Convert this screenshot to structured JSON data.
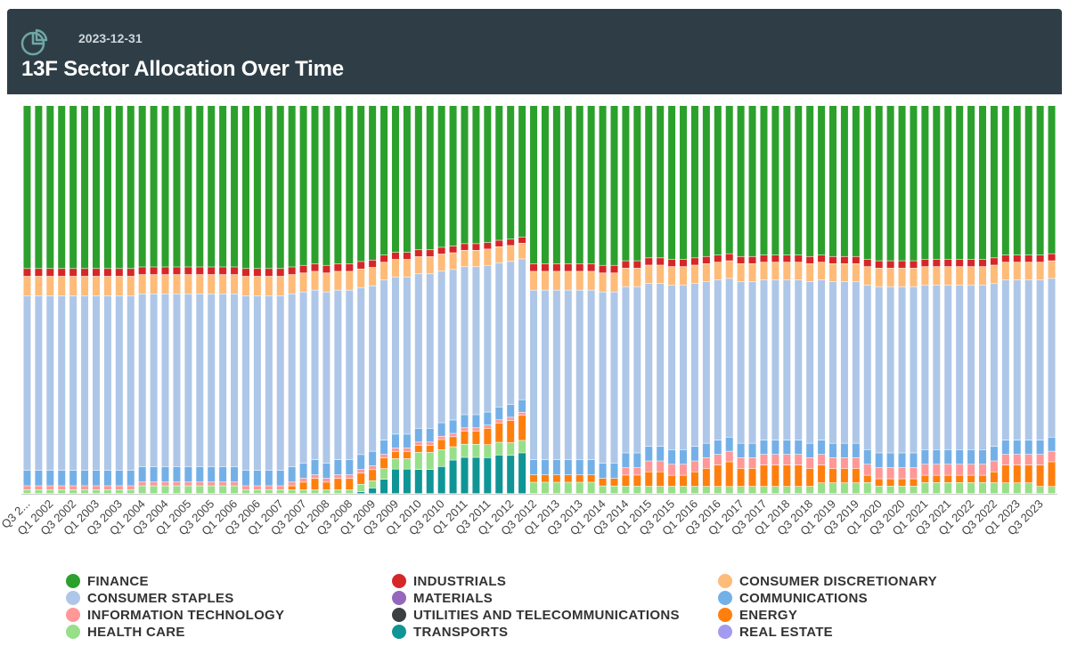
{
  "header": {
    "date": "2023-12-31",
    "title": "13F Sector Allocation Over Time",
    "icon": "pie-chart-icon"
  },
  "chart_data": {
    "type": "bar",
    "stacked": true,
    "normalized": true,
    "title": "13F Sector Allocation Over Time",
    "xlabel": "",
    "ylabel": "",
    "ylim": [
      0,
      100
    ],
    "grid": false,
    "legend_position": "bottom",
    "tick_labels": [
      "Q3 2...",
      "Q1 2002",
      "Q3 2002",
      "Q1 2003",
      "Q3 2003",
      "Q1 2004",
      "Q3 2004",
      "Q1 2005",
      "Q3 2005",
      "Q1 2006",
      "Q3 2006",
      "Q1 2007",
      "Q3 2007",
      "Q1 2008",
      "Q3 2008",
      "Q1 2009",
      "Q3 2009",
      "Q1 2010",
      "Q3 2010",
      "Q1 2011",
      "Q3 2011",
      "Q1 2012",
      "Q3 2012",
      "Q1 2013",
      "Q3 2013",
      "Q1 2014",
      "Q3 2014",
      "Q1 2015",
      "Q3 2015",
      "Q1 2016",
      "Q3 2016",
      "Q1 2017",
      "Q3 2017",
      "Q1 2018",
      "Q3 2018",
      "Q1 2019",
      "Q3 2019",
      "Q1 2020",
      "Q3 2020",
      "Q1 2021",
      "Q3 2021",
      "Q1 2022",
      "Q3 2022",
      "Q1 2023",
      "Q3 2023"
    ],
    "categories": [
      "Q3 2001",
      "Q4 2001",
      "Q1 2002",
      "Q2 2002",
      "Q3 2002",
      "Q4 2002",
      "Q1 2003",
      "Q2 2003",
      "Q3 2003",
      "Q4 2003",
      "Q1 2004",
      "Q2 2004",
      "Q3 2004",
      "Q4 2004",
      "Q1 2005",
      "Q2 2005",
      "Q3 2005",
      "Q4 2005",
      "Q1 2006",
      "Q2 2006",
      "Q3 2006",
      "Q4 2006",
      "Q1 2007",
      "Q2 2007",
      "Q3 2007",
      "Q4 2007",
      "Q1 2008",
      "Q2 2008",
      "Q3 2008",
      "Q4 2008",
      "Q1 2009",
      "Q2 2009",
      "Q3 2009",
      "Q4 2009",
      "Q1 2010",
      "Q2 2010",
      "Q3 2010",
      "Q4 2010",
      "Q1 2011",
      "Q2 2011",
      "Q3 2011",
      "Q4 2011",
      "Q1 2012",
      "Q2 2012",
      "Q3 2012",
      "Q4 2012",
      "Q1 2013",
      "Q2 2013",
      "Q3 2013",
      "Q4 2013",
      "Q1 2014",
      "Q2 2014",
      "Q3 2014",
      "Q4 2014",
      "Q1 2015",
      "Q2 2015",
      "Q3 2015",
      "Q4 2015",
      "Q1 2016",
      "Q2 2016",
      "Q3 2016",
      "Q4 2016",
      "Q1 2017",
      "Q2 2017",
      "Q3 2017",
      "Q4 2017",
      "Q1 2018",
      "Q2 2018",
      "Q3 2018",
      "Q4 2018",
      "Q1 2019",
      "Q2 2019",
      "Q3 2019",
      "Q4 2019",
      "Q1 2020",
      "Q2 2020",
      "Q3 2020",
      "Q4 2020",
      "Q1 2021",
      "Q2 2021",
      "Q3 2021",
      "Q4 2021",
      "Q1 2022",
      "Q2 2022",
      "Q3 2022",
      "Q4 2022",
      "Q1 2023",
      "Q2 2023",
      "Q3 2023",
      "Q4 2023"
    ],
    "series": [
      {
        "name": "TRANSPORTS",
        "color": "#0f9595",
        "values": [
          0,
          0,
          0,
          0,
          0,
          0,
          0,
          0,
          0,
          0,
          0,
          0,
          0,
          0,
          0,
          0,
          0,
          0,
          0,
          0,
          0,
          0,
          0,
          0,
          0,
          0,
          0,
          0,
          0,
          0.5,
          1.5,
          4,
          7,
          7,
          7,
          7,
          8,
          10,
          11,
          11,
          11,
          12,
          12,
          13,
          0,
          0,
          0,
          0,
          0,
          0,
          0,
          0,
          0,
          0,
          0,
          0,
          0,
          0,
          0,
          0,
          0,
          0,
          0,
          0,
          0,
          0,
          0,
          0,
          0,
          0,
          0,
          0,
          0,
          0,
          0,
          0,
          0,
          0,
          0,
          0,
          0,
          0,
          0,
          0,
          0,
          0,
          0,
          0,
          0,
          0
        ]
      },
      {
        "name": "HEALTH CARE",
        "color": "#98df8a",
        "values": [
          1,
          1,
          1,
          1,
          1,
          1,
          1,
          1,
          1,
          1,
          2,
          2,
          2,
          2,
          2,
          2,
          2,
          2,
          2,
          1,
          1,
          1,
          1,
          1,
          1,
          1,
          1,
          1,
          1,
          2,
          2,
          3,
          3,
          3,
          5,
          5,
          5,
          4,
          4,
          4,
          4,
          4,
          4,
          4,
          3,
          3,
          3,
          3,
          3,
          3,
          2,
          2,
          2,
          2,
          2,
          2,
          2,
          2,
          2,
          2,
          2,
          2,
          2,
          2,
          2,
          2,
          2,
          2,
          2,
          3,
          3,
          3,
          3,
          3,
          2,
          2,
          2,
          2,
          3,
          3,
          3,
          3,
          3,
          3,
          3,
          3,
          3,
          3,
          2,
          2
        ]
      },
      {
        "name": "ENERGY",
        "color": "#ff7f0e",
        "values": [
          0,
          0,
          0,
          0,
          0,
          0,
          0,
          0,
          0,
          0,
          0,
          0,
          0,
          0,
          0,
          0,
          0,
          0,
          0,
          0,
          0,
          0,
          0,
          1,
          2,
          3,
          2,
          3,
          3,
          3,
          3,
          3,
          2,
          2,
          2,
          2,
          3,
          3,
          4,
          4,
          5,
          6,
          7,
          8,
          2,
          2,
          2,
          2,
          2,
          2,
          2,
          2,
          3,
          3,
          4,
          4,
          3,
          3,
          4,
          5,
          6,
          7,
          5,
          5,
          6,
          6,
          6,
          6,
          5,
          5,
          4,
          4,
          4,
          2,
          2,
          2,
          2,
          2,
          2,
          2,
          2,
          2,
          2,
          2,
          3,
          5,
          5,
          5,
          6,
          7
        ]
      },
      {
        "name": "INFORMATION TECHNOLOGY",
        "color": "#ff9896",
        "values": [
          1,
          1,
          1,
          1,
          1,
          1,
          1,
          1,
          1,
          1,
          1,
          1,
          1,
          1,
          1,
          1,
          1,
          1,
          1,
          1,
          1,
          1,
          1,
          1,
          1,
          1,
          1,
          1,
          1,
          1,
          1,
          1,
          1,
          1,
          1,
          1,
          1,
          1,
          1,
          1,
          1,
          1,
          1,
          1,
          0,
          0,
          0,
          0,
          0,
          0,
          0,
          0,
          2,
          2,
          3,
          3,
          3,
          3,
          3,
          3,
          3,
          3,
          3,
          3,
          3,
          3,
          3,
          3,
          3,
          3,
          3,
          3,
          3,
          3,
          3,
          3,
          3,
          3,
          3,
          3,
          3,
          3,
          3,
          3,
          3,
          3,
          3,
          3,
          3,
          3
        ]
      },
      {
        "name": "COMMUNICATIONS",
        "color": "#74b0e8",
        "values": [
          4,
          4,
          4,
          4,
          4,
          4,
          4,
          4,
          4,
          4,
          4,
          4,
          4,
          4,
          4,
          4,
          4,
          4,
          4,
          4,
          4,
          4,
          4,
          4,
          4,
          4,
          4,
          4,
          4,
          4,
          4,
          4,
          4,
          4,
          4,
          4,
          4,
          4,
          4,
          4,
          4,
          4,
          4,
          4,
          4,
          4,
          4,
          4,
          4,
          4,
          4,
          4,
          4,
          4,
          4,
          4,
          4,
          4,
          4,
          4,
          4,
          4,
          4,
          4,
          4,
          4,
          4,
          4,
          4,
          4,
          4,
          4,
          4,
          4,
          4,
          4,
          4,
          4,
          4,
          4,
          4,
          4,
          4,
          4,
          4,
          4,
          4,
          4,
          4,
          4
        ]
      },
      {
        "name": "CONSUMER STAPLES",
        "color": "#aec7e8",
        "values": [
          45,
          45,
          45,
          45,
          45,
          45,
          45,
          45,
          45,
          45,
          45,
          45,
          45,
          45,
          45,
          45,
          45,
          45,
          45,
          45,
          45,
          45,
          45,
          45,
          45,
          45,
          45,
          45,
          45,
          45,
          45,
          45,
          45,
          45,
          45,
          45,
          45,
          45,
          45,
          45,
          45,
          45,
          45,
          45,
          45,
          45,
          45,
          45,
          45,
          45,
          45,
          45,
          45,
          45,
          45,
          45,
          45,
          45,
          45,
          45,
          45,
          45,
          45,
          45,
          45,
          45,
          45,
          45,
          45,
          45,
          45,
          45,
          45,
          45,
          45,
          45,
          45,
          45,
          45,
          45,
          45,
          45,
          45,
          45,
          45,
          45,
          45,
          45,
          45,
          45
        ]
      },
      {
        "name": "CONSUMER DISCRETIONARY",
        "color": "#ffbb78",
        "values": [
          5,
          5,
          5,
          5,
          5,
          5,
          5,
          5,
          5,
          5,
          5,
          5,
          5,
          5,
          5,
          5,
          5,
          5,
          5,
          5,
          5,
          5,
          5,
          5,
          5,
          5,
          5,
          5,
          5,
          5,
          5,
          5,
          5,
          5,
          5,
          5,
          5,
          5,
          5,
          5,
          5,
          5,
          5,
          5,
          5,
          5,
          5,
          5,
          5,
          5,
          5,
          5,
          5,
          5,
          5,
          5,
          5,
          5,
          5,
          5,
          5,
          5,
          5,
          5,
          5,
          5,
          5,
          5,
          5,
          5,
          5,
          5,
          5,
          5,
          5,
          5,
          5,
          5,
          5,
          5,
          5,
          5,
          5,
          5,
          5,
          5,
          5,
          5,
          5,
          5
        ]
      },
      {
        "name": "INDUSTRIALS",
        "color": "#d62728",
        "values": [
          2,
          2,
          2,
          2,
          2,
          2,
          2,
          2,
          2,
          2,
          2,
          2,
          2,
          2,
          2,
          2,
          2,
          2,
          2,
          2,
          2,
          2,
          2,
          2,
          2,
          2,
          2,
          2,
          2,
          2,
          2,
          2,
          2,
          2,
          2,
          2,
          2,
          2,
          2,
          2,
          2,
          2,
          2,
          2,
          2,
          2,
          2,
          2,
          2,
          2,
          2,
          2,
          2,
          2,
          2,
          2,
          2,
          2,
          2,
          2,
          2,
          2,
          2,
          2,
          2,
          2,
          2,
          2,
          2,
          2,
          2,
          2,
          2,
          2,
          2,
          2,
          2,
          2,
          2,
          2,
          2,
          2,
          2,
          2,
          2,
          2,
          2,
          2,
          2,
          2
        ]
      },
      {
        "name": "FINANCE",
        "color": "#2ca02c",
        "values": [
          42,
          42,
          42,
          42,
          42,
          42,
          42,
          42,
          42,
          42,
          42,
          42,
          42,
          42,
          42,
          42,
          42,
          42,
          42,
          42,
          42,
          42,
          42,
          42,
          42,
          42,
          42,
          42,
          42,
          42,
          42,
          42,
          42,
          42,
          42,
          42,
          42,
          42,
          42,
          42,
          42,
          42,
          42,
          42,
          42,
          42,
          42,
          42,
          42,
          42,
          42,
          42,
          42,
          42,
          42,
          42,
          42,
          42,
          42,
          42,
          42,
          42,
          42,
          42,
          42,
          42,
          42,
          42,
          42,
          42,
          42,
          42,
          42,
          42,
          42,
          42,
          42,
          42,
          42,
          42,
          42,
          42,
          42,
          42,
          42,
          42,
          42,
          42,
          42,
          42
        ]
      }
    ],
    "legend": [
      {
        "name": "FINANCE",
        "color": "#2ca02c"
      },
      {
        "name": "INDUSTRIALS",
        "color": "#d62728"
      },
      {
        "name": "CONSUMER DISCRETIONARY",
        "color": "#ffbb78"
      },
      {
        "name": "CONSUMER STAPLES",
        "color": "#aec7e8"
      },
      {
        "name": "MATERIALS",
        "color": "#9467bd"
      },
      {
        "name": "COMMUNICATIONS",
        "color": "#74b0e8"
      },
      {
        "name": "INFORMATION TECHNOLOGY",
        "color": "#ff9896"
      },
      {
        "name": "UTILITIES AND TELECOMMUNICATIONS",
        "color": "#3a3f44"
      },
      {
        "name": "ENERGY",
        "color": "#ff7f0e"
      },
      {
        "name": "HEALTH CARE",
        "color": "#98df8a"
      },
      {
        "name": "TRANSPORTS",
        "color": "#0f9595"
      },
      {
        "name": "REAL ESTATE",
        "color": "#a29bef"
      }
    ]
  }
}
